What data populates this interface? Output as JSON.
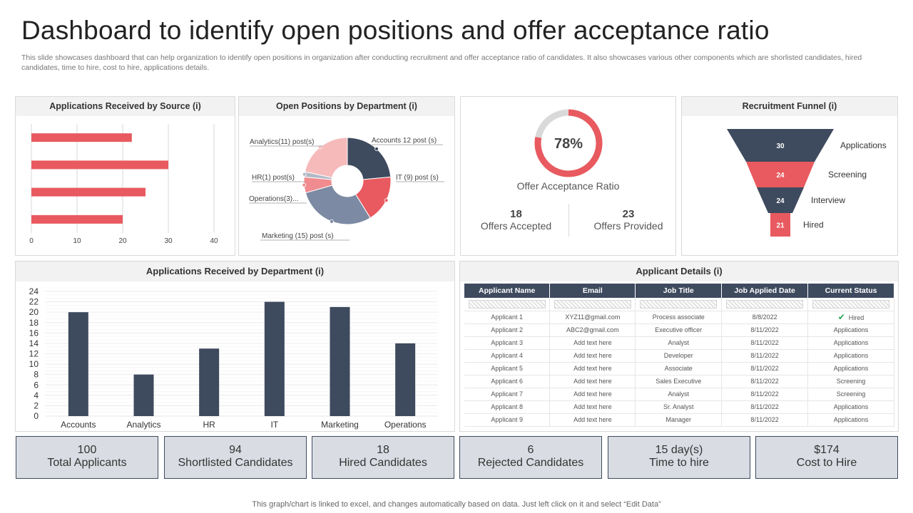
{
  "title": "Dashboard to identify open positions and offer acceptance ratio",
  "subtitle": "This slide showcases dashboard that can help organization to identify open positions in organization after conducting recruitment and offer acceptance ratio of candidates. It also showcases various other components which are shorlisted candidates, hired candidates, time to hire, cost to hire, applications details.",
  "panels": {
    "source": "Applications Received by Source (i)",
    "positions": "Open Positions by Department (i)",
    "funnel": "Recruitment Funnel (i)",
    "dept_apps": "Applications Received by Department (i)",
    "applicants": "Applicant Details (i)"
  },
  "offer": {
    "percent_label": "78%",
    "percent": 78,
    "label": "Offer Acceptance Ratio",
    "accepted_value": "18",
    "accepted_label": "Offers Accepted",
    "provided_value": "23",
    "provided_label": "Offers Provided"
  },
  "chart_data": [
    {
      "type": "bar",
      "orientation": "horizontal",
      "categories": [
        "",
        "",
        "",
        ""
      ],
      "values": [
        22,
        30,
        25,
        20
      ],
      "xlim": [
        0,
        40
      ],
      "xticks": [
        "0",
        "10",
        "20",
        "30",
        "40"
      ],
      "color": "#e85a5f"
    },
    {
      "type": "pie",
      "donut": true,
      "slices": [
        {
          "label": "Accounts 12 post (s)",
          "value": 12,
          "color": "#3e4a5e"
        },
        {
          "label": "IT (9) post (s)",
          "value": 9,
          "color": "#e85a5f"
        },
        {
          "label": "Marketing (15) post (s)",
          "value": 15,
          "color": "#7d8aa3"
        },
        {
          "label": "Operations(3)...",
          "value": 3,
          "color": "#f08c8f"
        },
        {
          "label": "HR(1) post(s)",
          "value": 1,
          "color": "#b2b9c6"
        },
        {
          "label": "Analytics(11) post(s)",
          "value": 11,
          "color": "#f6babb"
        }
      ]
    },
    {
      "type": "bar",
      "title": "Recruitment Funnel",
      "categories": [
        "Applications",
        "Screening",
        "Interview",
        "Hired"
      ],
      "values": [
        30,
        24,
        24,
        21
      ],
      "colors": [
        "#3e4a5e",
        "#e85a5f",
        "#3e4a5e",
        "#e85a5f"
      ]
    },
    {
      "type": "bar",
      "categories": [
        "Accounts",
        "Analytics",
        "HR",
        "IT",
        "Marketing",
        "Operations"
      ],
      "values": [
        20,
        8,
        13,
        22,
        21,
        14
      ],
      "ylim": [
        0,
        24
      ],
      "yticks": [
        "0",
        "2",
        "4",
        "6",
        "8",
        "10",
        "12",
        "14",
        "16",
        "18",
        "20",
        "22",
        "24"
      ],
      "color": "#3e4a5e"
    }
  ],
  "table": {
    "headers": [
      "Applicant Name",
      "Email",
      "Job Title",
      "Job Applied Date",
      "Current Status"
    ],
    "rows": [
      [
        "Applicant 1",
        "XYZ11@gmail.com",
        "Process associate",
        "8/8/2022",
        "Hired"
      ],
      [
        "Applicant 2",
        "ABC2@gmail.com",
        "Executive officer",
        "8/11/2022",
        "Applications"
      ],
      [
        "Applicant 3",
        "Add text here",
        "Analyst",
        "8/11/2022",
        "Applications"
      ],
      [
        "Applicant 4",
        "Add text here",
        "Developer",
        "8/11/2022",
        "Applications"
      ],
      [
        "Applicant 5",
        "Add text here",
        "Associate",
        "8/11/2022",
        "Applications"
      ],
      [
        "Applicant 6",
        "Add text here",
        "Sales Executive",
        "8/11/2022",
        "Screening"
      ],
      [
        "Applicant 7",
        "Add text here",
        "Analyst",
        "8/11/2022",
        "Screening"
      ],
      [
        "Applicant 8",
        "Add text here",
        "Sr. Analyst",
        "8/11/2022",
        "Applications"
      ],
      [
        "Applicant 9",
        "Add text here",
        "Manager",
        "8/11/2022",
        "Applications"
      ]
    ],
    "check_icon": "check-icon"
  },
  "kpis": [
    {
      "value": "100",
      "label": "Total Applicants"
    },
    {
      "value": "94",
      "label": "Shortlisted Candidates"
    },
    {
      "value": "18",
      "label": "Hired Candidates"
    },
    {
      "value": "6",
      "label": "Rejected Candidates"
    },
    {
      "value": "15 day(s)",
      "label": "Time to hire"
    },
    {
      "value": "$174",
      "label": "Cost to Hire"
    }
  ],
  "footer": "This graph/chart is linked to excel,  and changes automatically based on data. Just left click on it and select “Edit Data”",
  "colors": {
    "navy": "#3e4a5e",
    "red": "#e85a5f",
    "grey": "#d9dde3"
  }
}
